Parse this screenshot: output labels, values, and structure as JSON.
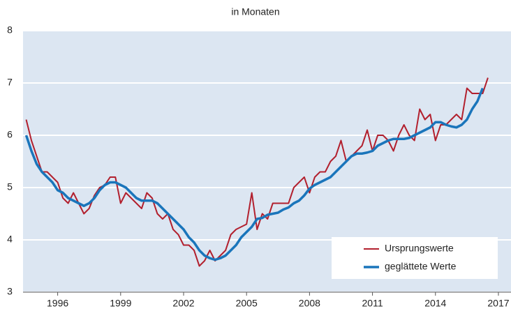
{
  "chart_data": {
    "type": "line",
    "title": "in Monaten",
    "x": [
      1994.5,
      1994.75,
      1995,
      1995.25,
      1995.5,
      1995.75,
      1996,
      1996.25,
      1996.5,
      1996.75,
      1997,
      1997.25,
      1997.5,
      1997.75,
      1998,
      1998.25,
      1998.5,
      1998.75,
      1999,
      1999.25,
      1999.5,
      1999.75,
      2000,
      2000.25,
      2000.5,
      2000.75,
      2001,
      2001.25,
      2001.5,
      2001.75,
      2002,
      2002.25,
      2002.5,
      2002.75,
      2003,
      2003.25,
      2003.5,
      2003.75,
      2004,
      2004.25,
      2004.5,
      2004.75,
      2005,
      2005.25,
      2005.5,
      2005.75,
      2006,
      2006.25,
      2006.5,
      2006.75,
      2007,
      2007.25,
      2007.5,
      2007.75,
      2008,
      2008.25,
      2008.5,
      2008.75,
      2009,
      2009.25,
      2009.5,
      2009.75,
      2010,
      2010.25,
      2010.5,
      2010.75,
      2011,
      2011.25,
      2011.5,
      2011.75,
      2012,
      2012.25,
      2012.5,
      2012.75,
      2013,
      2013.25,
      2013.5,
      2013.75,
      2014,
      2014.25,
      2014.5,
      2014.75,
      2015,
      2015.25,
      2015.5,
      2015.75,
      2016,
      2016.25,
      2016.5
    ],
    "series": [
      {
        "name": "Ursprungswerte",
        "color": "#b2202e",
        "width": 2,
        "values": [
          6.3,
          5.9,
          5.6,
          5.3,
          5.3,
          5.2,
          5.1,
          4.8,
          4.7,
          4.9,
          4.7,
          4.5,
          4.6,
          4.85,
          5.0,
          5.05,
          5.2,
          5.2,
          4.7,
          4.9,
          4.8,
          4.7,
          4.6,
          4.9,
          4.8,
          4.5,
          4.4,
          4.5,
          4.2,
          4.1,
          3.9,
          3.9,
          3.8,
          3.5,
          3.6,
          3.8,
          3.6,
          3.7,
          3.8,
          4.1,
          4.2,
          4.25,
          4.3,
          4.9,
          4.2,
          4.5,
          4.4,
          4.7,
          4.7,
          4.7,
          4.7,
          5.0,
          5.1,
          5.2,
          4.9,
          5.2,
          5.3,
          5.3,
          5.5,
          5.6,
          5.9,
          5.5,
          5.6,
          5.7,
          5.8,
          6.1,
          5.7,
          6.0,
          6.0,
          5.9,
          5.7,
          6.0,
          6.2,
          6.0,
          5.9,
          6.5,
          6.3,
          6.4,
          5.9,
          6.2,
          6.2,
          6.3,
          6.4,
          6.3,
          6.9,
          6.8,
          6.8,
          6.8,
          7.1
        ]
      },
      {
        "name": "geglättete Werte",
        "color": "#1a75bb",
        "width": 3.5,
        "values": [
          6.0,
          5.7,
          5.45,
          5.3,
          5.2,
          5.1,
          4.95,
          4.9,
          4.8,
          4.75,
          4.7,
          4.65,
          4.7,
          4.8,
          4.95,
          5.05,
          5.1,
          5.1,
          5.05,
          5.0,
          4.9,
          4.8,
          4.75,
          4.75,
          4.75,
          4.7,
          4.6,
          4.5,
          4.4,
          4.3,
          4.2,
          4.05,
          3.95,
          3.8,
          3.7,
          3.65,
          3.62,
          3.65,
          3.7,
          3.8,
          3.9,
          4.05,
          4.15,
          4.25,
          4.4,
          4.42,
          4.48,
          4.5,
          4.52,
          4.58,
          4.62,
          4.7,
          4.75,
          4.85,
          4.98,
          5.05,
          5.1,
          5.15,
          5.2,
          5.3,
          5.4,
          5.5,
          5.6,
          5.65,
          5.65,
          5.67,
          5.7,
          5.8,
          5.85,
          5.9,
          5.93,
          5.93,
          5.93,
          5.95,
          6.0,
          6.05,
          6.1,
          6.15,
          6.25,
          6.25,
          6.2,
          6.17,
          6.15,
          6.2,
          6.3,
          6.5,
          6.65,
          6.9,
          null
        ]
      }
    ],
    "xlim": [
      1994.35,
      2017.6
    ],
    "xticks": [
      1996,
      1999,
      2002,
      2005,
      2008,
      2011,
      2014,
      2017
    ],
    "ylim": [
      3,
      8
    ],
    "yticks": [
      3,
      4,
      5,
      6,
      7,
      8
    ],
    "grid": true,
    "legend": "lower right"
  }
}
